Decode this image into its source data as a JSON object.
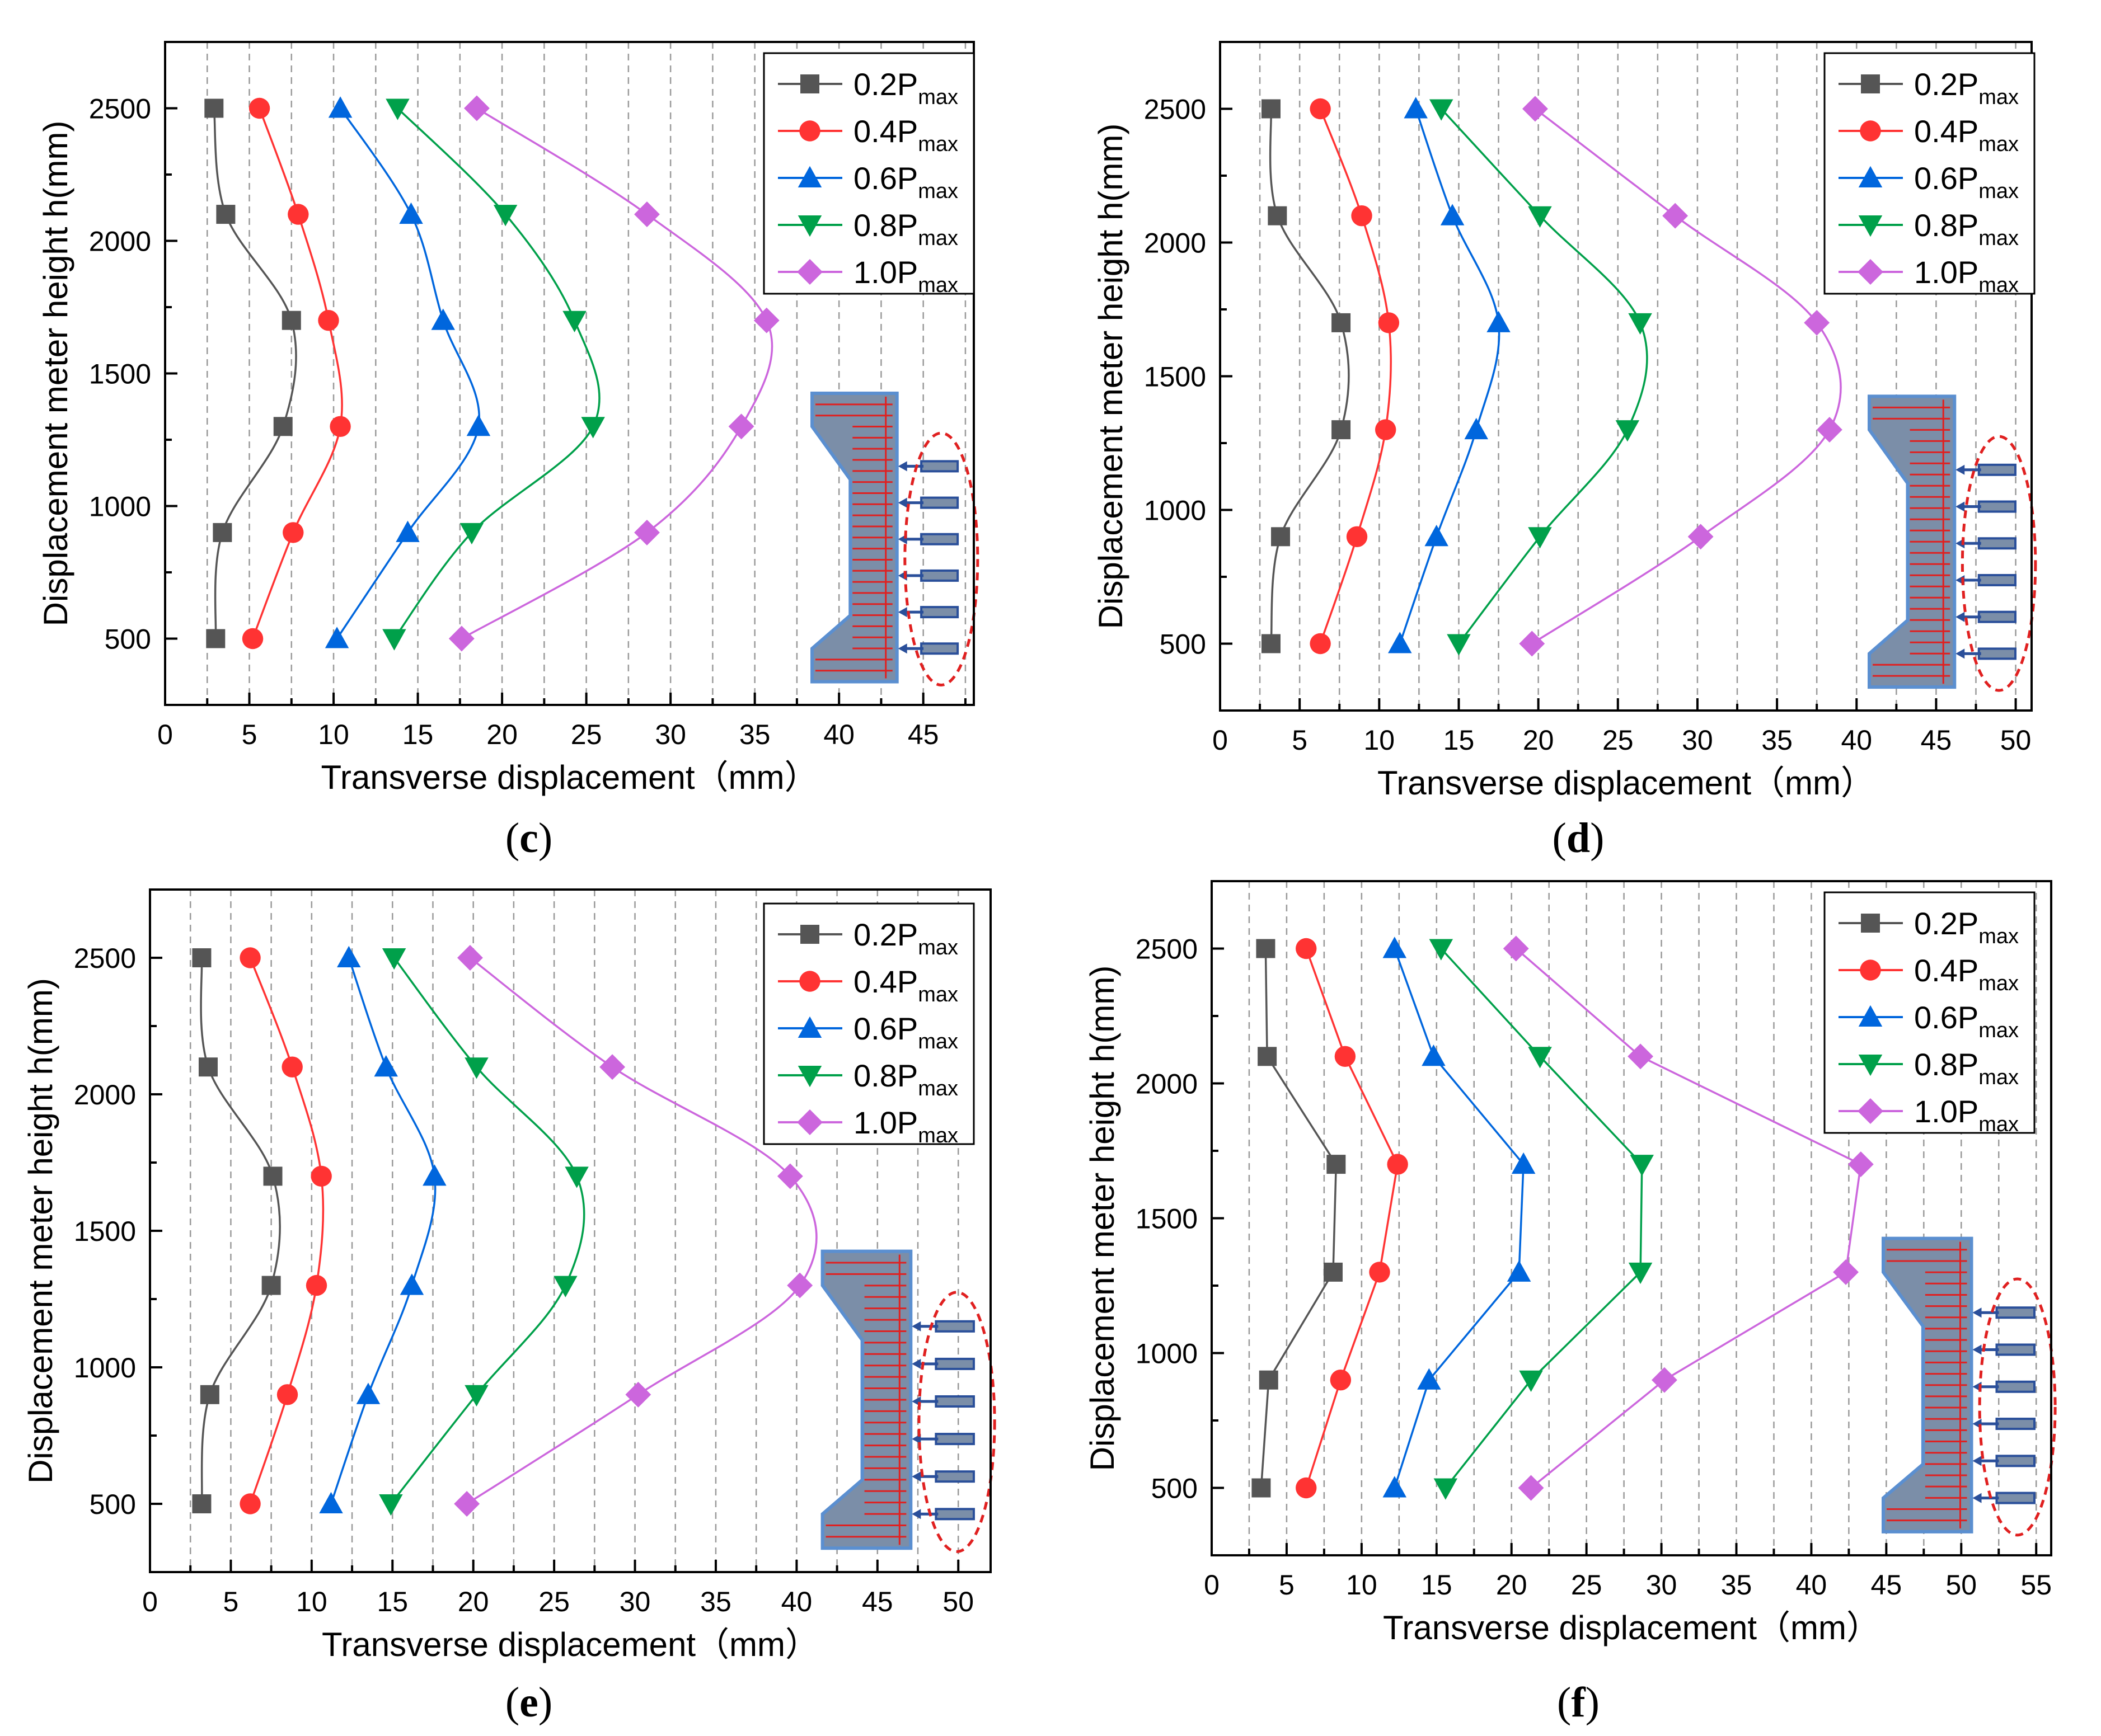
{
  "figure": {
    "panels": [
      "c",
      "d",
      "e",
      "f"
    ],
    "legend_entries": [
      "0.2P",
      "0.4P",
      "0.6P",
      "0.8P",
      "1.0P"
    ],
    "legend_subscript": "max",
    "series_colors": [
      "#555555",
      "#ff3333",
      "#0066dd",
      "#00a04a",
      "#cc66dd"
    ],
    "series_markers": [
      "square",
      "circle",
      "triangle-up",
      "triangle-down",
      "diamond"
    ]
  },
  "chart_data": [
    {
      "type": "line",
      "panel": "(c)",
      "xlabel": "Transverse displacement（mm）",
      "ylabel": "Displacement meter height h(mm)",
      "xlim": [
        0,
        48
      ],
      "ylim": [
        250,
        2750
      ],
      "xticks": [
        0,
        5,
        10,
        15,
        20,
        25,
        30,
        35,
        40,
        45
      ],
      "yticks": [
        500,
        1000,
        1500,
        2000,
        2500
      ],
      "legend": "top-right",
      "grid": "vertical dashed",
      "y": [
        500,
        900,
        1300,
        1700,
        2100,
        2500
      ],
      "series": [
        {
          "name": "0.2Pmax",
          "x": [
            3.0,
            3.4,
            7.0,
            7.5,
            3.6,
            2.9
          ]
        },
        {
          "name": "0.4Pmax",
          "x": [
            5.2,
            7.6,
            10.4,
            9.7,
            7.9,
            5.6
          ]
        },
        {
          "name": "0.6Pmax",
          "x": [
            10.2,
            14.4,
            18.6,
            16.5,
            14.6,
            10.4
          ]
        },
        {
          "name": "0.8Pmax",
          "x": [
            13.6,
            18.2,
            25.4,
            24.3,
            20.2,
            13.8
          ]
        },
        {
          "name": "1.0Pmax",
          "x": [
            17.6,
            28.6,
            34.2,
            35.7,
            28.6,
            18.5
          ]
        }
      ]
    },
    {
      "type": "line",
      "panel": "(d)",
      "xlabel": "Transverse displacement（mm）",
      "ylabel": "Displacement meter height h(mm)",
      "xlim": [
        0,
        51
      ],
      "ylim": [
        250,
        2750
      ],
      "xticks": [
        0,
        5,
        10,
        15,
        20,
        25,
        30,
        35,
        40,
        45,
        50
      ],
      "yticks": [
        500,
        1000,
        1500,
        2000,
        2500
      ],
      "legend": "top-right",
      "grid": "vertical dashed",
      "y": [
        500,
        900,
        1300,
        1700,
        2100,
        2500
      ],
      "series": [
        {
          "name": "0.2Pmax",
          "x": [
            3.2,
            3.8,
            7.6,
            7.6,
            3.6,
            3.2
          ]
        },
        {
          "name": "0.4Pmax",
          "x": [
            6.3,
            8.6,
            10.4,
            10.6,
            8.9,
            6.3
          ]
        },
        {
          "name": "0.6Pmax",
          "x": [
            11.3,
            13.6,
            16.1,
            17.5,
            14.6,
            12.3
          ]
        },
        {
          "name": "0.8Pmax",
          "x": [
            15.0,
            20.1,
            25.6,
            26.4,
            20.1,
            13.9
          ]
        },
        {
          "name": "1.0Pmax",
          "x": [
            19.6,
            30.2,
            38.3,
            37.5,
            28.6,
            19.8
          ]
        }
      ]
    },
    {
      "type": "line",
      "panel": "(e)",
      "xlabel": "Transverse displacement（mm）",
      "ylabel": "Displacement meter height h(mm)",
      "xlim": [
        0,
        52
      ],
      "ylim": [
        250,
        2750
      ],
      "xticks": [
        0,
        5,
        10,
        15,
        20,
        25,
        30,
        35,
        40,
        45,
        50
      ],
      "yticks": [
        500,
        1000,
        1500,
        2000,
        2500
      ],
      "legend": "top-right",
      "grid": "vertical dashed",
      "y": [
        500,
        900,
        1300,
        1700,
        2100,
        2500
      ],
      "series": [
        {
          "name": "0.2Pmax",
          "x": [
            3.2,
            3.7,
            7.5,
            7.6,
            3.6,
            3.2
          ]
        },
        {
          "name": "0.4Pmax",
          "x": [
            6.2,
            8.5,
            10.3,
            10.6,
            8.8,
            6.2
          ]
        },
        {
          "name": "0.6Pmax",
          "x": [
            11.2,
            13.5,
            16.2,
            17.6,
            14.6,
            12.3
          ]
        },
        {
          "name": "0.8Pmax",
          "x": [
            14.9,
            20.2,
            25.7,
            26.4,
            20.2,
            15.1
          ]
        },
        {
          "name": "1.0Pmax",
          "x": [
            19.6,
            30.2,
            40.2,
            39.6,
            28.6,
            19.8
          ]
        }
      ]
    },
    {
      "type": "line",
      "panel": "(f)",
      "xlabel": "Transverse displacement（mm）",
      "ylabel": "Displacement meter height h(mm)",
      "xlim": [
        0,
        56
      ],
      "ylim": [
        250,
        2750
      ],
      "xticks": [
        0,
        5,
        10,
        15,
        20,
        25,
        30,
        35,
        40,
        45,
        50,
        55
      ],
      "yticks": [
        500,
        1000,
        1500,
        2000,
        2500
      ],
      "legend": "top-right",
      "grid": "vertical dashed",
      "y": [
        500,
        900,
        1300,
        1700,
        2100,
        2500
      ],
      "series": [
        {
          "name": "0.2Pmax",
          "x": [
            3.3,
            3.8,
            8.1,
            8.3,
            3.7,
            3.6
          ]
        },
        {
          "name": "0.4Pmax",
          "x": [
            6.3,
            8.6,
            11.2,
            12.4,
            8.9,
            6.3
          ]
        },
        {
          "name": "0.6Pmax",
          "x": [
            12.2,
            14.5,
            20.5,
            20.8,
            14.8,
            12.2
          ]
        },
        {
          "name": "0.8Pmax",
          "x": [
            15.6,
            21.3,
            28.6,
            28.7,
            21.9,
            15.3
          ]
        },
        {
          "name": "1.0Pmax",
          "x": [
            21.3,
            30.2,
            42.3,
            43.3,
            28.6,
            20.3
          ]
        }
      ]
    }
  ]
}
